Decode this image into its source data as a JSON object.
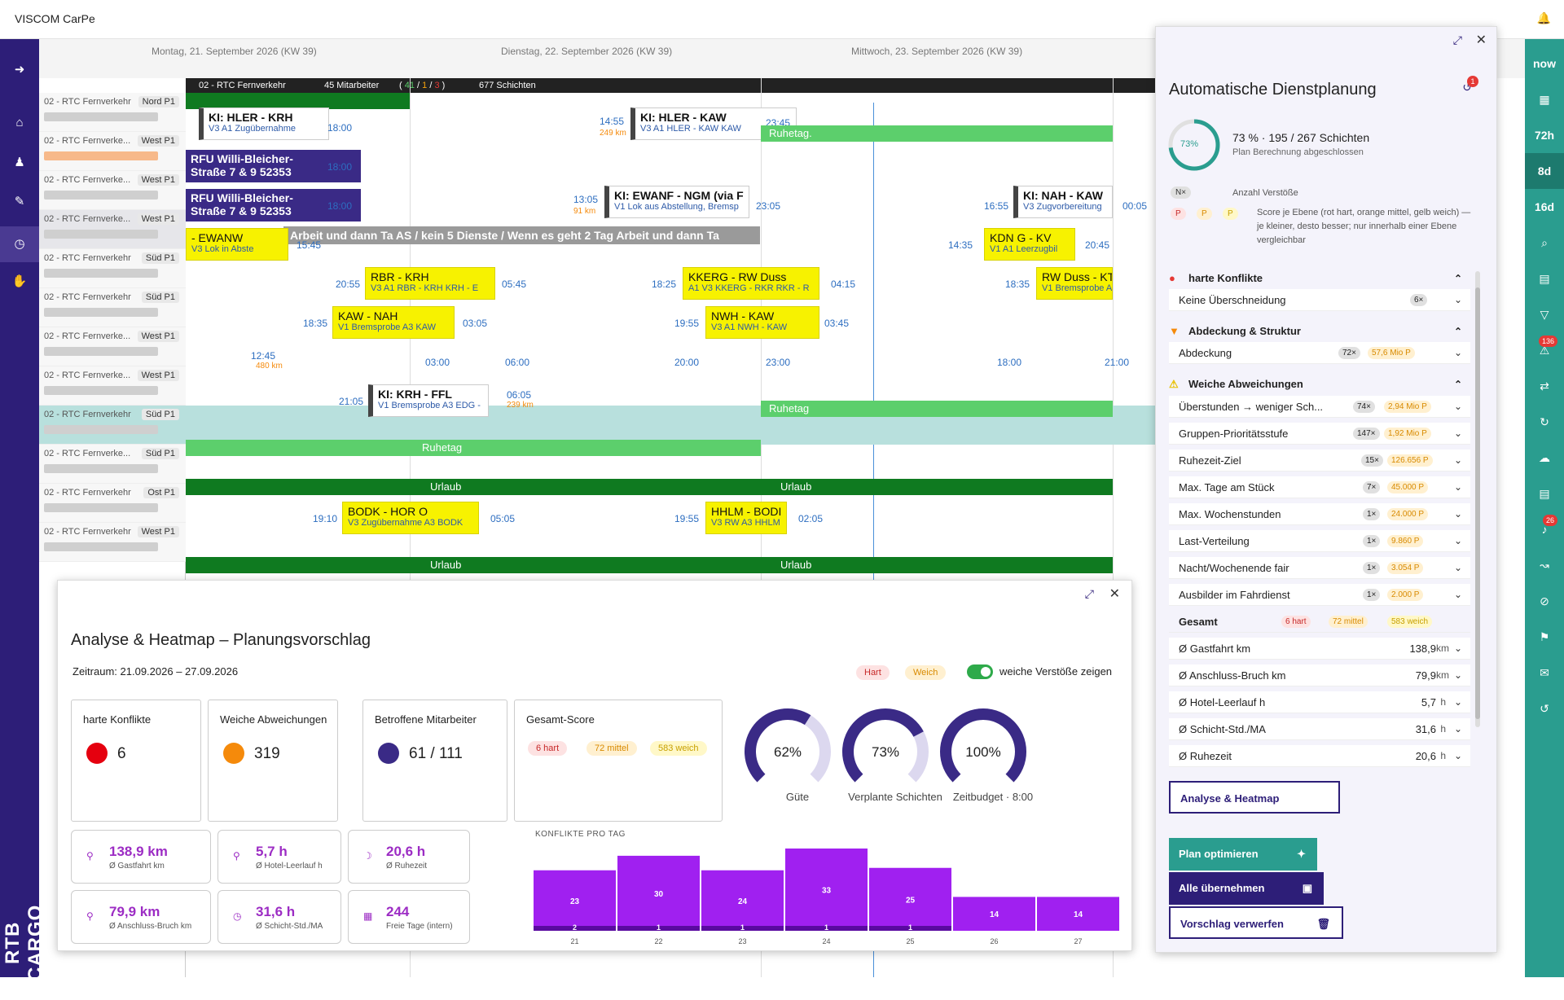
{
  "app": {
    "title": "VISCOM CarPe"
  },
  "brand": {
    "colors": {
      "primary": "#2d1e78",
      "teal": "#2a9d8f",
      "shift_yellow": "#f7f200",
      "rest_green": "#5ccf6c",
      "vacation_green": "#0f7a20",
      "score_purple": "#a020f0"
    }
  },
  "left_nav": {
    "icons": [
      "arrow-right-icon",
      "home-icon",
      "people-icon",
      "edit-icon",
      "clock-icon",
      "hand-icon"
    ],
    "logo": "RTB CARGO"
  },
  "right_nav": {
    "items": [
      {
        "label": "now"
      },
      {
        "label": "calendar-icon"
      },
      {
        "label": "72h"
      },
      {
        "label": "8d"
      },
      {
        "label": "16d"
      },
      {
        "label": "search-icon"
      },
      {
        "label": "calendar-edit-icon"
      },
      {
        "label": "filter-icon"
      },
      {
        "label": "warning-icon",
        "badge": "136"
      },
      {
        "label": "shuffle-icon"
      },
      {
        "label": "sync-icon"
      },
      {
        "label": "cloud-icon"
      },
      {
        "label": "document-icon"
      },
      {
        "label": "bell-icon",
        "badge": "26"
      },
      {
        "label": "route-icon"
      },
      {
        "label": "hide-icon"
      },
      {
        "label": "flag-icon"
      },
      {
        "label": "mail-icon"
      },
      {
        "label": "history-icon"
      }
    ]
  },
  "schedule": {
    "dates": [
      "Montag, 21. September 2026 (KW 39)",
      "Dienstag, 22. September 2026 (KW 39)",
      "Mittwoch, 23. September 2026 (KW 39)"
    ],
    "info": {
      "team": "02 - RTC Fernverkehr",
      "employees": "45 Mitarbeiter",
      "counts_open": "(",
      "c_green": "41",
      "c_sep1": "/",
      "c_orange": "1",
      "c_sep2": "/",
      "c_red": "3",
      "counts_close": ")",
      "shifts": "677 Schichten"
    },
    "rows": [
      {
        "team": "02 - RTC Fernverkehr",
        "sub": "Nord P1"
      },
      {
        "team": "02 - RTC Fernverke...",
        "sub": "West P1"
      },
      {
        "team": "02 - RTC Fernverke...",
        "sub": "West P1"
      },
      {
        "team": "02 - RTC Fernverke...",
        "sub": "West P1"
      },
      {
        "team": "02 - RTC Fernverkehr",
        "sub": "Süd P1"
      },
      {
        "team": "02 - RTC Fernverkehr",
        "sub": "Süd P1"
      },
      {
        "team": "02 - RTC Fernverke...",
        "sub": "West P1"
      },
      {
        "team": "02 - RTC Fernverke...",
        "sub": "West P1"
      },
      {
        "team": "02 - RTC Fernverkehr",
        "sub": "Süd P1"
      },
      {
        "team": "02 - RTC Fernverke...",
        "sub": "Süd P1"
      },
      {
        "team": "02 - RTC Fernverkehr",
        "sub": "Ost P1"
      },
      {
        "team": "02 - RTC Fernverkehr",
        "sub": "West P1"
      }
    ],
    "blocks": {
      "ruhetag": "Ruhetag.",
      "ruhetag2": "Ruhetag",
      "urlaub": "Urlaub",
      "rfu1": "RFU Willi-Bleicher-Straße 7 & 9 52353",
      "note": "Arbeit und dann Ta AS / kein 5 Dienste / Wenn es geht 2 Tag Arbeit und dann Ta"
    },
    "shifts": [
      {
        "t1": "KI: HLER - KRH",
        "t2": "V3  A1  Zugübernahme"
      },
      {
        "t1": "KI: HLER - KAW",
        "t2": "V3  A1  HLER - KAW  KAW"
      },
      {
        "t1": "KI: EWANF - NGM (via F",
        "t2": "V1  Lok aus Abstellung, Bremsp"
      },
      {
        "t1": "KI: NAH - KAW",
        "t2": "V3  Zugvorbereitung"
      },
      {
        "t1": "- EWANW",
        "t2": "V3  Lok in Abste"
      },
      {
        "t1": "KDN G - KV",
        "t2": "V1  A1  Leerzugbil"
      },
      {
        "t1": "RBR - KRH",
        "t2": "V3  A1  RBR - KRH  KRH - E"
      },
      {
        "t1": "KKERG - RW Duss",
        "t2": "A1  V3  KKERG - RKR  RKR - R"
      },
      {
        "t1": "RW Duss - KT",
        "t2": "V1  Bremsprobe  A3  RW"
      },
      {
        "t1": "KAW - NAH",
        "t2": "V1  Bremsprobe  A3  KAW"
      },
      {
        "t1": "NWH - KAW",
        "t2": "V3  A1  NWH - KAW"
      },
      {
        "t1": "KI: KRH - FFL",
        "t2": "V1  Bremsprobe  A3  EDG -"
      },
      {
        "t1": "BODK - HOR O",
        "t2": "V3  Zugübernahme  A3  BODK"
      },
      {
        "t1": "HHLM - BODI",
        "t2": "V3  RW  A3  HHLM"
      }
    ],
    "times": [
      "18:00",
      "18:00",
      "18:00",
      "14:55",
      "13:05",
      "23:05",
      "16:55",
      "00:05",
      "15:45",
      "14:35",
      "20:45",
      "20:55",
      "05:45",
      "18:25",
      "04:15",
      "18:35",
      "18:35",
      "03:05",
      "19:55",
      "03:45",
      "12:45",
      "03:00",
      "06:00",
      "20:00",
      "23:00",
      "18:00",
      "21:00",
      "21:05",
      "06:05",
      "19:10",
      "05:05",
      "19:55",
      "02:05",
      "23:45"
    ],
    "distances": [
      "249 km",
      "91 km",
      "480 km",
      "239 km"
    ],
    "badges": [
      "EDG",
      "EDG"
    ]
  },
  "analysis": {
    "title": "Analyse & Heatmap – Planungsvorschlag",
    "zeitraum": "Zeitraum: 21.09.2026 – 27.09.2026",
    "tag_hart": "Hart",
    "tag_weich": "Weich",
    "toggle_label": "weiche Verstöße zeigen",
    "cards": [
      {
        "title": "harte Konflikte",
        "value": "6",
        "color": "#e5000f"
      },
      {
        "title": "Weiche Abweichungen",
        "value": "319",
        "color": "#f58a0b"
      },
      {
        "title": "Betroffene Mitarbeiter",
        "value": "61 / 111",
        "color": "#3a2a86"
      }
    ],
    "score_card": {
      "title": "Gesamt-Score",
      "hart": "6 hart",
      "mittel": "72 mittel",
      "weich": "583 weich"
    },
    "gauges": [
      {
        "value": "62%",
        "label": "Güte",
        "fraction": 0.62
      },
      {
        "value": "73%",
        "label": "Verplante Schichten",
        "fraction": 0.73
      },
      {
        "value": "100%",
        "label": "Zeitbudget · 8:00",
        "fraction": 1.0
      }
    ],
    "metrics": [
      {
        "value": "138,9 km",
        "label": "Ø Gastfahrt km",
        "icon": "location-icon"
      },
      {
        "value": "5,7 h",
        "label": "Ø Hotel-Leerlauf h",
        "icon": "location-icon"
      },
      {
        "value": "20,6 h",
        "label": "Ø Ruhezeit",
        "icon": "moon-icon"
      },
      {
        "value": "79,9 km",
        "label": "Ø Anschluss-Bruch km",
        "icon": "location-icon"
      },
      {
        "value": "31,6 h",
        "label": "Ø Schicht-Std./MA",
        "icon": "clock-icon"
      },
      {
        "value": "244",
        "label": "Freie Tage (intern)",
        "icon": "calendar-icon"
      }
    ],
    "chart_title": "KONFLIKTE PRO TAG"
  },
  "chart_data": {
    "type": "bar",
    "title": "KONFLIKTE PRO TAG",
    "categories": [
      "21",
      "22",
      "23",
      "24",
      "25",
      "26",
      "27"
    ],
    "series": [
      {
        "name": "weich",
        "values": [
          23,
          30,
          24,
          33,
          25,
          14,
          14
        ]
      },
      {
        "name": "hart",
        "values": [
          2,
          1,
          1,
          1,
          1,
          0,
          0
        ]
      }
    ],
    "ylim": [
      0,
      35
    ],
    "grid": false
  },
  "planning": {
    "title": "Automatische Dienstplanung",
    "history_badge": "1",
    "progress_pct": "73%",
    "progress_fraction": 0.73,
    "progress_line": "73 % · 195 / 267 Schichten",
    "progress_status": "Plan Berechnung abgeschlossen",
    "legend_n": "N×",
    "legend_n_text": "Anzahl Verstöße",
    "legend_p": "P",
    "legend_p_text": "Score je Ebene (rot hart, orange mittel, gelb weich) — je kleiner, desto besser; nur innerhalb einer Ebene vergleichbar",
    "sections": [
      {
        "title": "harte Konflikte",
        "icon": "error-icon"
      },
      {
        "title": "Abdeckung & Struktur",
        "icon": "warning-orange-icon"
      },
      {
        "title": "Weiche Abweichungen",
        "icon": "warning-yellow-icon"
      }
    ],
    "criteria": [
      {
        "label": "Keine Überschneidung",
        "count": "6×",
        "points": ""
      },
      {
        "label": "Abdeckung",
        "count": "72×",
        "points": "57,6 Mio P"
      },
      {
        "label": "Überstunden → weniger Sch...",
        "count": "74×",
        "points": "2,94 Mio P"
      },
      {
        "label": "Gruppen-Prioritätsstufe",
        "count": "147×",
        "points": "1,92 Mio P"
      },
      {
        "label": "Ruhezeit-Ziel",
        "count": "15×",
        "points": "126.656 P"
      },
      {
        "label": "Max. Tage am Stück",
        "count": "7×",
        "points": "45.000 P"
      },
      {
        "label": "Max. Wochenstunden",
        "count": "1×",
        "points": "24.000 P"
      },
      {
        "label": "Last-Verteilung",
        "count": "1×",
        "points": "9.860 P"
      },
      {
        "label": "Nacht/Wochenende fair",
        "count": "1×",
        "points": "3.054 P"
      },
      {
        "label": "Ausbilder im Fahrdienst",
        "count": "1×",
        "points": "2.000 P"
      }
    ],
    "gesamt": {
      "label": "Gesamt",
      "hart": "6 hart",
      "mittel": "72 mittel",
      "weich": "583 weich"
    },
    "averages": [
      {
        "label": "Ø Gastfahrt km",
        "value": "138,9",
        "unit": "km"
      },
      {
        "label": "Ø Anschluss-Bruch km",
        "value": "79,9",
        "unit": "km"
      },
      {
        "label": "Ø Hotel-Leerlauf h",
        "value": "5,7",
        "unit": "h"
      },
      {
        "label": "Ø Schicht-Std./MA",
        "value": "31,6",
        "unit": "h"
      },
      {
        "label": "Ø Ruhezeit",
        "value": "20,6",
        "unit": "h"
      }
    ],
    "buttons": {
      "analyse": "Analyse & Heatmap",
      "optimize": "Plan optimieren",
      "accept": "Alle übernehmen",
      "discard": "Vorschlag verwerfen"
    }
  }
}
